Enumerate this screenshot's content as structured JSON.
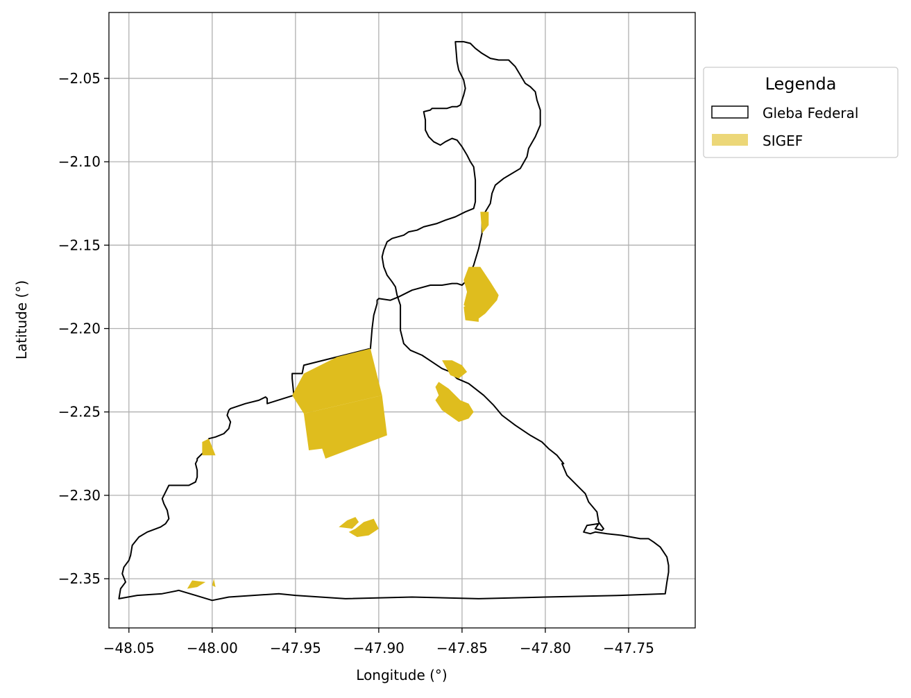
{
  "map": {
    "xlabel": "Longitude (°)",
    "ylabel": "Latitude (°)",
    "xlim": [
      -48.062,
      -47.71
    ],
    "ylim": [
      -2.3795,
      -2.0105
    ],
    "grid": true,
    "xticks": [
      -48.05,
      -48.0,
      -47.95,
      -47.9,
      -47.85,
      -47.8,
      -47.75
    ],
    "xtick_labels": [
      "−48.05",
      "−48.00",
      "−47.95",
      "−47.90",
      "−47.85",
      "−47.80",
      "−47.75"
    ],
    "yticks": [
      -2.05,
      -2.1,
      -2.15,
      -2.2,
      -2.25,
      -2.3,
      -2.35
    ],
    "ytick_labels": [
      "−2.05",
      "−2.10",
      "−2.15",
      "−2.20",
      "−2.25",
      "−2.30",
      "−2.35"
    ],
    "colors": {
      "gleba_edge": "#000000",
      "sigef_fill": "#dfbd1e",
      "grid": "#b0b0b0"
    }
  },
  "legend": {
    "title": "Legenda",
    "placement": "outside upper right",
    "items": [
      {
        "label": "Gleba Federal"
      },
      {
        "label": "SIGEF"
      }
    ]
  },
  "layers": {
    "gleba_federal": {
      "name": "Gleba Federal",
      "rings": [
        [
          [
            -48.056,
            -2.362
          ],
          [
            -48.055,
            -2.356
          ],
          [
            -48.052,
            -2.352
          ],
          [
            -48.054,
            -2.347
          ],
          [
            -48.053,
            -2.343
          ],
          [
            -48.05,
            -2.339
          ],
          [
            -48.049,
            -2.336
          ],
          [
            -48.048,
            -2.33
          ],
          [
            -48.044,
            -2.325
          ],
          [
            -48.039,
            -2.322
          ],
          [
            -48.031,
            -2.319
          ],
          [
            -48.028,
            -2.317
          ],
          [
            -48.026,
            -2.314
          ],
          [
            -48.027,
            -2.309
          ],
          [
            -48.029,
            -2.305
          ],
          [
            -48.03,
            -2.302
          ],
          [
            -48.029,
            -2.3
          ],
          [
            -48.026,
            -2.294
          ],
          [
            -48.024,
            -2.294
          ],
          [
            -48.014,
            -2.294
          ],
          [
            -48.01,
            -2.292
          ],
          [
            -48.009,
            -2.289
          ],
          [
            -48.009,
            -2.285
          ],
          [
            -48.01,
            -2.281
          ],
          [
            -48.009,
            -2.279
          ],
          [
            -48.009,
            -2.278
          ],
          [
            -48.007,
            -2.276
          ],
          [
            -48.005,
            -2.274
          ],
          [
            -48.004,
            -2.271
          ],
          [
            -48.002,
            -2.266
          ],
          [
            -47.998,
            -2.265
          ],
          [
            -47.993,
            -2.263
          ],
          [
            -47.99,
            -2.26
          ],
          [
            -47.989,
            -2.256
          ],
          [
            -47.99,
            -2.254
          ],
          [
            -47.991,
            -2.252
          ],
          [
            -47.99,
            -2.249
          ],
          [
            -47.989,
            -2.248
          ],
          [
            -47.98,
            -2.245
          ],
          [
            -47.972,
            -2.243
          ],
          [
            -47.968,
            -2.241
          ],
          [
            -47.967,
            -2.242
          ],
          [
            -47.967,
            -2.245
          ],
          [
            -47.951,
            -2.24
          ],
          [
            -47.952,
            -2.23
          ],
          [
            -47.952,
            -2.227
          ],
          [
            -47.946,
            -2.227
          ],
          [
            -47.945,
            -2.222
          ],
          [
            -47.925,
            -2.217
          ],
          [
            -47.905,
            -2.212
          ],
          [
            -47.904,
            -2.2
          ],
          [
            -47.903,
            -2.192
          ],
          [
            -47.901,
            -2.185
          ],
          [
            -47.901,
            -2.183
          ],
          [
            -47.9,
            -2.182
          ],
          [
            -47.893,
            -2.183
          ],
          [
            -47.888,
            -2.181
          ],
          [
            -47.88,
            -2.177
          ],
          [
            -47.869,
            -2.174
          ],
          [
            -47.862,
            -2.174
          ],
          [
            -47.856,
            -2.173
          ],
          [
            -47.853,
            -2.173
          ],
          [
            -47.85,
            -2.174
          ],
          [
            -47.847,
            -2.171
          ],
          [
            -47.843,
            -2.162
          ],
          [
            -47.84,
            -2.152
          ],
          [
            -47.838,
            -2.143
          ],
          [
            -47.838,
            -2.134
          ],
          [
            -47.836,
            -2.13
          ],
          [
            -47.833,
            -2.125
          ],
          [
            -47.832,
            -2.119
          ],
          [
            -47.83,
            -2.114
          ],
          [
            -47.825,
            -2.11
          ],
          [
            -47.815,
            -2.104
          ],
          [
            -47.811,
            -2.097
          ],
          [
            -47.81,
            -2.092
          ],
          [
            -47.806,
            -2.085
          ],
          [
            -47.803,
            -2.078
          ],
          [
            -47.803,
            -2.069
          ],
          [
            -47.805,
            -2.063
          ],
          [
            -47.806,
            -2.058
          ],
          [
            -47.809,
            -2.055
          ],
          [
            -47.812,
            -2.053
          ],
          [
            -47.815,
            -2.048
          ],
          [
            -47.818,
            -2.043
          ],
          [
            -47.822,
            -2.039
          ],
          [
            -47.828,
            -2.039
          ],
          [
            -47.833,
            -2.038
          ],
          [
            -47.838,
            -2.035
          ],
          [
            -47.842,
            -2.032
          ],
          [
            -47.845,
            -2.029
          ],
          [
            -47.849,
            -2.028
          ],
          [
            -47.854,
            -2.028
          ],
          [
            -47.853,
            -2.04
          ],
          [
            -47.852,
            -2.045
          ],
          [
            -47.85,
            -2.049
          ],
          [
            -47.849,
            -2.051
          ],
          [
            -47.848,
            -2.056
          ],
          [
            -47.849,
            -2.06
          ],
          [
            -47.85,
            -2.063
          ],
          [
            -47.851,
            -2.066
          ],
          [
            -47.853,
            -2.067
          ],
          [
            -47.856,
            -2.067
          ],
          [
            -47.859,
            -2.068
          ],
          [
            -47.868,
            -2.068
          ],
          [
            -47.869,
            -2.069
          ],
          [
            -47.873,
            -2.07
          ],
          [
            -47.872,
            -2.075
          ],
          [
            -47.872,
            -2.081
          ],
          [
            -47.87,
            -2.085
          ],
          [
            -47.867,
            -2.088
          ],
          [
            -47.863,
            -2.09
          ],
          [
            -47.86,
            -2.088
          ],
          [
            -47.856,
            -2.086
          ],
          [
            -47.853,
            -2.087
          ],
          [
            -47.85,
            -2.091
          ],
          [
            -47.847,
            -2.096
          ],
          [
            -47.845,
            -2.1
          ],
          [
            -47.843,
            -2.103
          ],
          [
            -47.842,
            -2.111
          ],
          [
            -47.842,
            -2.124
          ],
          [
            -47.843,
            -2.128
          ],
          [
            -47.848,
            -2.13
          ],
          [
            -47.854,
            -2.133
          ],
          [
            -47.86,
            -2.135
          ],
          [
            -47.865,
            -2.137
          ],
          [
            -47.873,
            -2.139
          ],
          [
            -47.877,
            -2.141
          ],
          [
            -47.882,
            -2.142
          ],
          [
            -47.885,
            -2.144
          ],
          [
            -47.892,
            -2.146
          ],
          [
            -47.895,
            -2.148
          ],
          [
            -47.897,
            -2.153
          ],
          [
            -47.898,
            -2.157
          ],
          [
            -47.897,
            -2.163
          ],
          [
            -47.895,
            -2.168
          ],
          [
            -47.892,
            -2.172
          ],
          [
            -47.89,
            -2.175
          ],
          [
            -47.889,
            -2.18
          ],
          [
            -47.887,
            -2.186
          ],
          [
            -47.887,
            -2.194
          ],
          [
            -47.887,
            -2.201
          ],
          [
            -47.886,
            -2.205
          ],
          [
            -47.885,
            -2.209
          ],
          [
            -47.881,
            -2.213
          ],
          [
            -47.874,
            -2.216
          ],
          [
            -47.868,
            -2.22
          ],
          [
            -47.862,
            -2.224
          ],
          [
            -47.857,
            -2.226
          ],
          [
            -47.853,
            -2.23
          ],
          [
            -47.846,
            -2.233
          ],
          [
            -47.837,
            -2.24
          ],
          [
            -47.831,
            -2.246
          ],
          [
            -47.826,
            -2.252
          ],
          [
            -47.818,
            -2.258
          ],
          [
            -47.809,
            -2.264
          ],
          [
            -47.802,
            -2.268
          ],
          [
            -47.798,
            -2.272
          ],
          [
            -47.793,
            -2.276
          ],
          [
            -47.789,
            -2.281
          ],
          [
            -47.79,
            -2.281
          ],
          [
            -47.787,
            -2.288
          ],
          [
            -47.783,
            -2.292
          ],
          [
            -47.779,
            -2.296
          ],
          [
            -47.776,
            -2.299
          ],
          [
            -47.774,
            -2.304
          ],
          [
            -47.769,
            -2.31
          ],
          [
            -47.768,
            -2.316
          ],
          [
            -47.765,
            -2.32
          ],
          [
            -47.766,
            -2.321
          ],
          [
            -47.77,
            -2.32
          ],
          [
            -47.768,
            -2.317
          ],
          [
            -47.775,
            -2.318
          ],
          [
            -47.777,
            -2.322
          ],
          [
            -47.773,
            -2.323
          ],
          [
            -47.77,
            -2.322
          ],
          [
            -47.763,
            -2.323
          ],
          [
            -47.754,
            -2.324
          ],
          [
            -47.743,
            -2.326
          ],
          [
            -47.738,
            -2.326
          ],
          [
            -47.735,
            -2.328
          ],
          [
            -47.731,
            -2.331
          ],
          [
            -47.729,
            -2.334
          ],
          [
            -47.727,
            -2.337
          ],
          [
            -47.726,
            -2.342
          ],
          [
            -47.726,
            -2.346
          ],
          [
            -47.727,
            -2.352
          ],
          [
            -47.728,
            -2.359
          ],
          [
            -47.755,
            -2.36
          ],
          [
            -47.8,
            -2.361
          ],
          [
            -47.84,
            -2.362
          ],
          [
            -47.88,
            -2.361
          ],
          [
            -47.92,
            -2.362
          ],
          [
            -47.95,
            -2.36
          ],
          [
            -47.96,
            -2.359
          ],
          [
            -47.99,
            -2.361
          ],
          [
            -48.0,
            -2.363
          ],
          [
            -48.01,
            -2.36
          ],
          [
            -48.02,
            -2.357
          ],
          [
            -48.03,
            -2.359
          ],
          [
            -48.045,
            -2.36
          ],
          [
            -48.056,
            -2.362
          ]
        ]
      ]
    },
    "sigef": {
      "name": "SIGEF",
      "polygons": [
        [
          [
            -47.952,
            -2.24
          ],
          [
            -47.945,
            -2.227
          ],
          [
            -47.925,
            -2.217
          ],
          [
            -47.905,
            -2.212
          ],
          [
            -47.898,
            -2.24
          ],
          [
            -47.945,
            -2.251
          ]
        ],
        [
          [
            -47.945,
            -2.251
          ],
          [
            -47.898,
            -2.24
          ],
          [
            -47.895,
            -2.264
          ],
          [
            -47.932,
            -2.278
          ],
          [
            -47.934,
            -2.272
          ],
          [
            -47.942,
            -2.273
          ]
        ],
        [
          [
            -47.839,
            -2.13
          ],
          [
            -47.834,
            -2.13
          ],
          [
            -47.834,
            -2.138
          ],
          [
            -47.838,
            -2.143
          ]
        ],
        [
          [
            -47.846,
            -2.163
          ],
          [
            -47.839,
            -2.163
          ],
          [
            -47.833,
            -2.172
          ],
          [
            -47.828,
            -2.18
          ],
          [
            -47.829,
            -2.183
          ],
          [
            -47.836,
            -2.191
          ],
          [
            -47.84,
            -2.194
          ],
          [
            -47.845,
            -2.188
          ],
          [
            -47.849,
            -2.186
          ],
          [
            -47.847,
            -2.178
          ],
          [
            -47.849,
            -2.171
          ]
        ],
        [
          [
            -47.845,
            -2.185
          ],
          [
            -47.84,
            -2.194
          ],
          [
            -47.84,
            -2.196
          ],
          [
            -47.848,
            -2.195
          ],
          [
            -47.849,
            -2.187
          ]
        ],
        [
          [
            -47.864,
            -2.232
          ],
          [
            -47.858,
            -2.236
          ],
          [
            -47.851,
            -2.243
          ],
          [
            -47.846,
            -2.245
          ],
          [
            -47.843,
            -2.25
          ],
          [
            -47.846,
            -2.254
          ],
          [
            -47.852,
            -2.256
          ],
          [
            -47.862,
            -2.249
          ],
          [
            -47.866,
            -2.243
          ],
          [
            -47.864,
            -2.24
          ],
          [
            -47.866,
            -2.235
          ]
        ],
        [
          [
            -47.862,
            -2.219
          ],
          [
            -47.856,
            -2.219
          ],
          [
            -47.85,
            -2.222
          ],
          [
            -47.847,
            -2.226
          ],
          [
            -47.852,
            -2.23
          ],
          [
            -47.857,
            -2.228
          ]
        ],
        [
          [
            -47.924,
            -2.319
          ],
          [
            -47.919,
            -2.315
          ],
          [
            -47.914,
            -2.313
          ],
          [
            -47.912,
            -2.316
          ],
          [
            -47.916,
            -2.32
          ]
        ],
        [
          [
            -47.918,
            -2.322
          ],
          [
            -47.914,
            -2.32
          ],
          [
            -47.909,
            -2.316
          ],
          [
            -47.903,
            -2.314
          ],
          [
            -47.9,
            -2.32
          ],
          [
            -47.906,
            -2.324
          ],
          [
            -47.913,
            -2.325
          ]
        ],
        [
          [
            -48.006,
            -2.268
          ],
          [
            -48.006,
            -2.276
          ],
          [
            -47.998,
            -2.276
          ],
          [
            -48.002,
            -2.266
          ]
        ],
        [
          [
            -48.015,
            -2.356
          ],
          [
            -48.009,
            -2.355
          ],
          [
            -48.004,
            -2.352
          ],
          [
            -48.012,
            -2.351
          ]
        ],
        [
          [
            -48.0,
            -2.354
          ],
          [
            -47.999,
            -2.35
          ],
          [
            -47.998,
            -2.355
          ]
        ]
      ]
    }
  }
}
